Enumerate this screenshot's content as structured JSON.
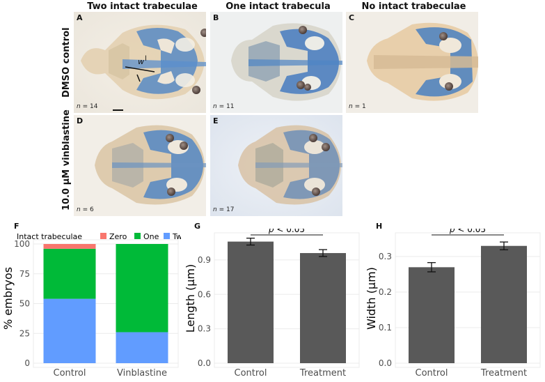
{
  "columns": [
    "Two intact trabeculae",
    "One intact trabecula",
    "No intact trabeculae"
  ],
  "rows": [
    "DMSO control",
    "10.0 μM vinblastine"
  ],
  "photos": [
    {
      "label": "A",
      "n": "14",
      "annot_w": "w",
      "annot_l": "l"
    },
    {
      "label": "B",
      "n": "11"
    },
    {
      "label": "C",
      "n": "1"
    },
    {
      "label": "D",
      "n": "6"
    },
    {
      "label": "E",
      "n": "17"
    }
  ],
  "n_prefix": "n =",
  "panel_letters": {
    "F": "F",
    "G": "G",
    "H": "H"
  },
  "colors": {
    "zero": "#F8766D",
    "one": "#00BA38",
    "two": "#619CFF",
    "bar": "#595959"
  },
  "chart_data": [
    {
      "type": "bar",
      "stacked": true,
      "panel": "F",
      "categories": [
        "Control",
        "Vinblastine"
      ],
      "legend_title": "Intact trabeculae",
      "series": [
        {
          "name": "Zero",
          "values": [
            4,
            0
          ]
        },
        {
          "name": "One",
          "values": [
            42,
            74
          ]
        },
        {
          "name": "Two",
          "values": [
            54,
            26
          ]
        }
      ],
      "ylabel": "% embryos",
      "ylim": [
        0,
        100
      ],
      "yticks": [
        0,
        25,
        50,
        75,
        100
      ],
      "legend_position": "top"
    },
    {
      "type": "bar",
      "panel": "G",
      "categories": [
        "Control",
        "Treatment"
      ],
      "values": [
        1.06,
        0.96
      ],
      "errors": [
        0.03,
        0.03
      ],
      "ylabel": "Length (μm)",
      "ylim": [
        0,
        1.1
      ],
      "yticks": [
        "0.0",
        "0.3",
        "0.6",
        "0.9"
      ],
      "annotation": "p < 0.05"
    },
    {
      "type": "bar",
      "panel": "H",
      "categories": [
        "Control",
        "Treatment"
      ],
      "values": [
        0.27,
        0.33
      ],
      "errors": [
        0.013,
        0.011
      ],
      "ylabel": "Width (μm)",
      "ylim": [
        0,
        0.355
      ],
      "yticks": [
        "0.0",
        "0.1",
        "0.2",
        "0.3"
      ],
      "annotation": "p < 0.05"
    }
  ]
}
